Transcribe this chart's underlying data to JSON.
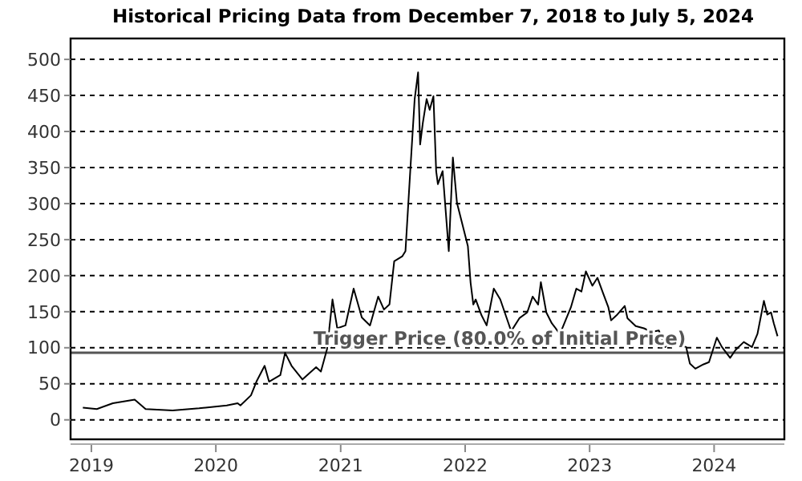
{
  "chart_data": {
    "type": "line",
    "title": "Historical Pricing Data from December 7, 2018 to July 5, 2024",
    "x": [
      "2018-12-07",
      "2019-01-17",
      "2019-03-05",
      "2019-05-08",
      "2019-06-09",
      "2019-08-27",
      "2019-11-13",
      "2020-02-02",
      "2020-03-05",
      "2020-03-13",
      "2020-04-13",
      "2020-04-29",
      "2020-05-23",
      "2020-06-05",
      "2020-07-08",
      "2020-07-22",
      "2020-08-10",
      "2020-09-11",
      "2020-10-21",
      "2020-11-04",
      "2020-11-22",
      "2020-12-08",
      "2020-12-22",
      "2021-01-15",
      "2021-02-08",
      "2021-03-04",
      "2021-03-28",
      "2021-04-21",
      "2021-05-08",
      "2021-05-24",
      "2021-06-07",
      "2021-07-01",
      "2021-07-10",
      "2021-07-24",
      "2021-08-06",
      "2021-08-16",
      "2021-08-22",
      "2021-08-30",
      "2021-09-10",
      "2021-09-19",
      "2021-09-30",
      "2021-10-08",
      "2021-10-13",
      "2021-10-27",
      "2021-11-14",
      "2021-11-26",
      "2021-12-08",
      "2021-12-24",
      "2022-01-09",
      "2022-01-17",
      "2022-01-25",
      "2022-02-01",
      "2022-02-18",
      "2022-03-05",
      "2022-03-26",
      "2022-04-14",
      "2022-05-08",
      "2022-05-16",
      "2022-06-09",
      "2022-07-02",
      "2022-07-18",
      "2022-08-03",
      "2022-08-11",
      "2022-08-27",
      "2022-09-12",
      "2022-10-06",
      "2022-11-07",
      "2022-11-23",
      "2022-12-08",
      "2022-12-21",
      "2023-01-09",
      "2023-01-24",
      "2023-02-10",
      "2023-02-25",
      "2023-03-05",
      "2023-03-21",
      "2023-04-14",
      "2023-04-22",
      "2023-05-16",
      "2023-06-09",
      "2023-07-02",
      "2023-07-23",
      "2023-08-11",
      "2023-08-27",
      "2023-09-20",
      "2023-10-11",
      "2023-10-22",
      "2023-11-07",
      "2023-12-01",
      "2023-12-17",
      "2024-01-09",
      "2024-01-24",
      "2024-02-17",
      "2024-03-04",
      "2024-03-28",
      "2024-04-21",
      "2024-05-07",
      "2024-05-26",
      "2024-06-05",
      "2024-06-16",
      "2024-06-24",
      "2024-07-05"
    ],
    "series": [
      {
        "color": "#000000",
        "values": [
          17,
          15,
          23,
          28,
          15,
          13,
          16,
          20,
          23,
          20,
          34,
          53,
          75,
          53,
          62,
          93,
          75,
          56,
          73,
          67,
          98,
          167,
          127,
          131,
          182,
          142,
          131,
          171,
          153,
          160,
          220,
          227,
          234,
          345,
          445,
          482,
          382,
          412,
          445,
          430,
          449,
          345,
          327,
          345,
          234,
          364,
          301,
          271,
          241,
          190,
          160,
          167,
          145,
          131,
          182,
          167,
          134,
          123,
          141,
          149,
          171,
          160,
          191,
          149,
          134,
          119,
          156,
          182,
          178,
          206,
          186,
          197,
          175,
          156,
          138,
          145,
          158,
          141,
          130,
          127,
          122,
          124,
          101,
          114,
          104,
          101,
          78,
          71,
          77,
          80,
          114,
          101,
          86,
          97,
          108,
          101,
          119,
          165,
          146,
          149,
          134,
          116
        ]
      }
    ],
    "xlim": [
      "2018-11-01",
      "2024-07-25"
    ],
    "xticks": [
      {
        "value": "2019-01-01",
        "label": "2019"
      },
      {
        "value": "2020-01-01",
        "label": "2020"
      },
      {
        "value": "2021-01-01",
        "label": "2021"
      },
      {
        "value": "2022-01-01",
        "label": "2022"
      },
      {
        "value": "2023-01-01",
        "label": "2023"
      },
      {
        "value": "2024-01-01",
        "label": "2024"
      }
    ],
    "ylim": [
      -27,
      529
    ],
    "yticks": [
      0,
      50,
      100,
      150,
      200,
      250,
      300,
      350,
      400,
      450,
      500
    ],
    "grid": "y",
    "ref_lines": [
      {
        "axis": "y",
        "value": 93,
        "label": "Trigger Price (80.0% of Initial Price)",
        "color": "#555555"
      }
    ]
  }
}
